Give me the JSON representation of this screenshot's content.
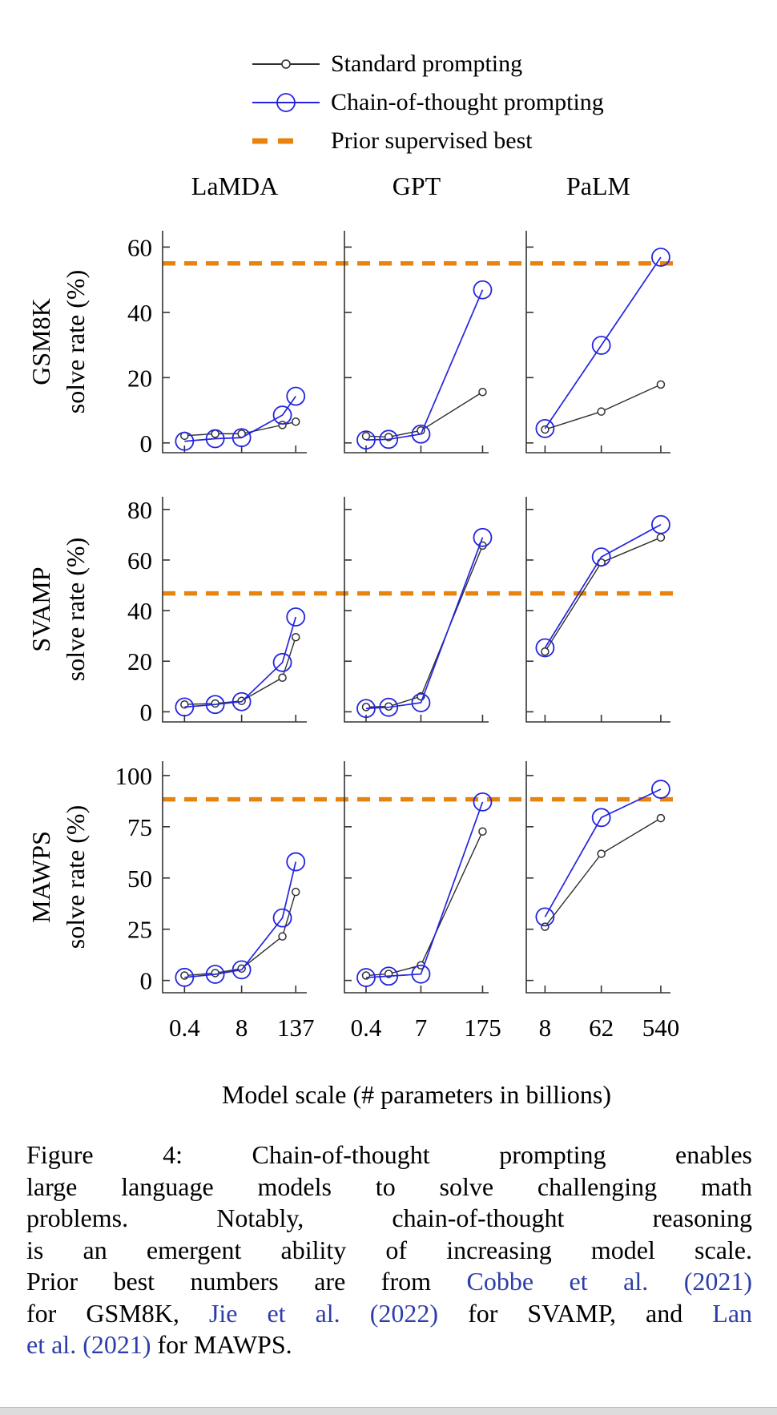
{
  "legend": {
    "items": [
      {
        "key": "standard",
        "label": "Standard prompting"
      },
      {
        "key": "cot",
        "label": "Chain-of-thought prompting"
      },
      {
        "key": "prior",
        "label": "Prior supervised best"
      }
    ]
  },
  "chart_data": {
    "type": "line",
    "xlabel": "Model scale (# parameters in billions)",
    "ylabel_inner": "solve rate (%)",
    "x_scale": "log",
    "legend_position": "top",
    "columns": [
      {
        "name": "LaMDA",
        "x": [
          0.4,
          2,
          8,
          68,
          137
        ],
        "xtick_values": [
          0.4,
          8,
          137
        ],
        "xtick_labels": [
          "0.4",
          "8",
          "137"
        ]
      },
      {
        "name": "GPT",
        "x": [
          0.4,
          1.3,
          7,
          175
        ],
        "xtick_values": [
          0.4,
          7,
          175
        ],
        "xtick_labels": [
          "0.4",
          "7",
          "175"
        ]
      },
      {
        "name": "PaLM",
        "x": [
          8,
          62,
          540
        ],
        "xtick_values": [
          8,
          62,
          540
        ],
        "xtick_labels": [
          "8",
          "62",
          "540"
        ]
      }
    ],
    "series_meta": [
      {
        "key": "standard",
        "label": "Standard prompting",
        "color": "#2f2f2f",
        "marker_radius": 4.5,
        "line_width": 1.4
      },
      {
        "key": "cot",
        "label": "Chain-of-thought prompting",
        "color": "#2424e0",
        "marker_radius": 11,
        "line_width": 1.7
      }
    ],
    "prior_best": {
      "label": "Prior supervised best",
      "color": "#e8830d"
    },
    "rows": [
      {
        "dataset": "GSM8K",
        "ylabel": "GSM8K solve rate (%)",
        "ylim": [
          -3,
          65
        ],
        "yticks": [
          0,
          20,
          40,
          60
        ],
        "prior_best_value": 55.0,
        "values": {
          "standard": [
            [
              2.2,
              2.8,
              2.8,
              5.5,
              6.5
            ],
            [
              2.1,
              1.8,
              3.8,
              15.6
            ],
            [
              4.1,
              9.6,
              17.9
            ]
          ],
          "cot": [
            [
              0.5,
              1.3,
              1.6,
              8.5,
              14.3
            ],
            [
              0.9,
              1.1,
              2.7,
              46.9
            ],
            [
              4.4,
              29.9,
              56.9
            ]
          ]
        }
      },
      {
        "dataset": "SVAMP",
        "ylabel": "SVAMP solve rate (%)",
        "ylim": [
          -4,
          85
        ],
        "yticks": [
          0,
          20,
          40,
          60,
          80
        ],
        "prior_best_value": 46.8,
        "values": {
          "standard": [
            [
              2.9,
              3.3,
              4.3,
              13.5,
              29.5
            ],
            [
              1.9,
              2.1,
              6.1,
              65.7
            ],
            [
              23.8,
              59.0,
              68.9
            ]
          ],
          "cot": [
            [
              1.9,
              2.9,
              4.0,
              19.5,
              37.5
            ],
            [
              1.3,
              1.8,
              3.6,
              68.9
            ],
            [
              25.3,
              61.2,
              74.0
            ]
          ]
        }
      },
      {
        "dataset": "MAWPS",
        "ylabel": "MAWPS solve rate (%)",
        "ylim": [
          -6,
          107
        ],
        "yticks": [
          0,
          25,
          50,
          75,
          100
        ],
        "prior_best_value": 88.4,
        "values": {
          "standard": [
            [
              2.4,
              3.6,
              5.8,
              21.5,
              43.2
            ],
            [
              2.4,
              3.2,
              7.4,
              72.7
            ],
            [
              26.2,
              61.8,
              79.2
            ]
          ],
          "cot": [
            [
              1.5,
              3.0,
              5.2,
              30.5,
              57.9
            ],
            [
              1.4,
              2.1,
              3.1,
              87.1
            ],
            [
              31.0,
              79.5,
              93.3
            ]
          ]
        }
      }
    ]
  },
  "caption": {
    "cite_color": "#2e3ea8",
    "lines": [
      [
        {
          "t": "Figure 4:  Chain-of-thought prompting enables",
          "cite": false
        }
      ],
      [
        {
          "t": "large language models to solve challenging math",
          "cite": false
        }
      ],
      [
        {
          "t": "problems.  Notably, chain-of-thought reasoning",
          "cite": false
        }
      ],
      [
        {
          "t": "is an emergent ability of increasing model scale.",
          "cite": false
        }
      ],
      [
        {
          "t": "Prior best numbers are from ",
          "cite": false
        },
        {
          "t": "Cobbe et al.",
          "cite": true
        },
        {
          "t": " ",
          "cite": false
        },
        {
          "t": "(2021)",
          "cite": true
        }
      ],
      [
        {
          "t": "for GSM8K, ",
          "cite": false
        },
        {
          "t": "Jie et al.",
          "cite": true
        },
        {
          "t": " ",
          "cite": false
        },
        {
          "t": "(2022)",
          "cite": true
        },
        {
          "t": " for SVAMP, and ",
          "cite": false
        },
        {
          "t": "Lan",
          "cite": true
        }
      ],
      [
        {
          "t": "et al.",
          "cite": true
        },
        {
          "t": " ",
          "cite": false
        },
        {
          "t": "(2021)",
          "cite": true
        },
        {
          "t": " for MAWPS.",
          "cite": false
        }
      ]
    ]
  }
}
